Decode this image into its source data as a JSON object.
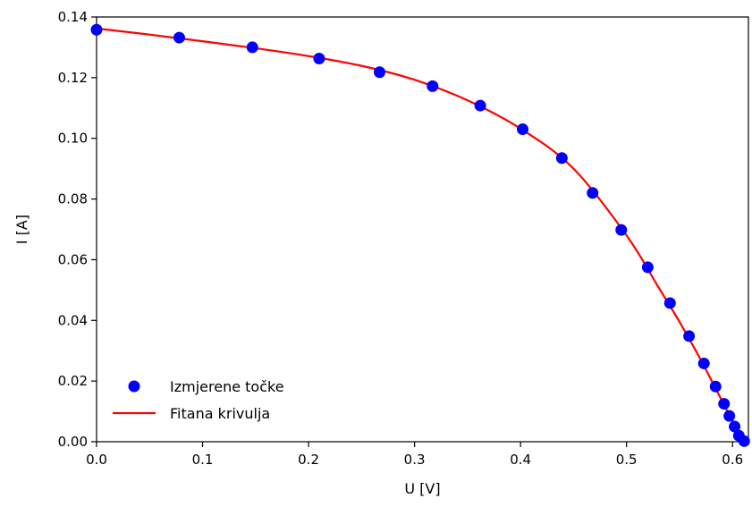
{
  "chart_data": {
    "type": "scatter",
    "title": "",
    "xlabel": "U [V]",
    "ylabel": "I [A]",
    "xlim": [
      0.0,
      0.615
    ],
    "ylim": [
      0.0,
      0.14
    ],
    "x_ticks": [
      "0.0",
      "0.1",
      "0.2",
      "0.3",
      "0.4",
      "0.5",
      "0.6"
    ],
    "y_ticks": [
      "0.00",
      "0.02",
      "0.04",
      "0.06",
      "0.08",
      "0.10",
      "0.12",
      "0.14"
    ],
    "grid": false,
    "legend_position": "lower-left",
    "series": [
      {
        "name": "Izmjerene točke",
        "kind": "scatter",
        "color": "#0000ff",
        "x": [
          0.0,
          0.078,
          0.147,
          0.21,
          0.267,
          0.317,
          0.362,
          0.402,
          0.439,
          0.468,
          0.495,
          0.52,
          0.541,
          0.559,
          0.573,
          0.584,
          0.592,
          0.597,
          0.602,
          0.606,
          0.611
        ],
        "y": [
          0.1358,
          0.1332,
          0.13,
          0.1263,
          0.1218,
          0.1172,
          0.1108,
          0.103,
          0.0935,
          0.082,
          0.0698,
          0.0575,
          0.0457,
          0.0348,
          0.0258,
          0.0182,
          0.0125,
          0.0085,
          0.005,
          0.002,
          0.0002
        ]
      },
      {
        "name": "Fitana krivulja",
        "kind": "line",
        "color": "#ff0000",
        "x": [
          0.0,
          0.05,
          0.1,
          0.15,
          0.2,
          0.25,
          0.3,
          0.35,
          0.4,
          0.45,
          0.5,
          0.53,
          0.55,
          0.57,
          0.59,
          0.6,
          0.61,
          0.613
        ],
        "y": [
          0.1362,
          0.1342,
          0.132,
          0.1297,
          0.1271,
          0.1239,
          0.1193,
          0.1125,
          0.1032,
          0.09,
          0.068,
          0.051,
          0.0395,
          0.027,
          0.0135,
          0.0068,
          0.001,
          0.0
        ]
      }
    ]
  }
}
